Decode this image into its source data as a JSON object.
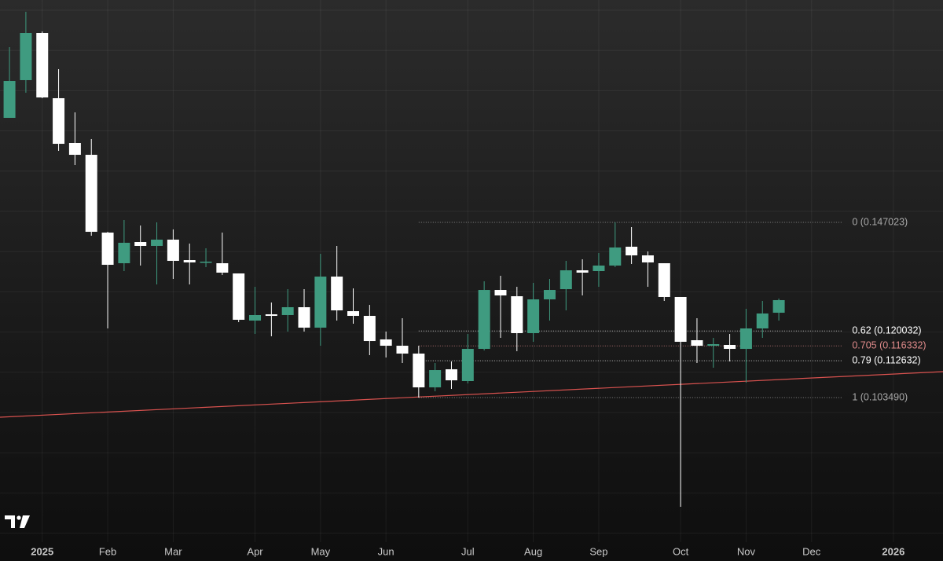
{
  "chart_data": {
    "type": "candlestick",
    "categories": [
      null,
      null,
      null,
      null,
      null,
      null,
      null,
      null,
      null,
      null,
      null,
      null,
      null,
      null,
      null,
      null,
      null,
      null,
      null,
      null,
      null,
      null,
      null,
      null,
      null,
      null,
      null,
      null,
      null,
      null,
      null,
      null,
      null,
      null,
      null,
      null,
      null,
      null,
      null,
      null,
      null,
      null,
      null,
      null,
      null,
      null,
      null,
      null
    ],
    "open": [
      0.17299,
      0.18236,
      0.19407,
      0.17787,
      0.16674,
      0.16381,
      0.14448,
      0.13687,
      0.14214,
      0.14117,
      0.14273,
      0.13765,
      0.13707,
      0.13687,
      0.13433,
      0.12262,
      0.12418,
      0.12399,
      0.12594,
      0.12086,
      0.13355,
      0.12496,
      0.12379,
      0.11794,
      0.11637,
      0.11442,
      0.10603,
      0.11052,
      0.10759,
      0.11559,
      0.13023,
      0.12867,
      0.1195,
      0.12789,
      0.13043,
      0.13511,
      0.13492,
      0.13629,
      0.14097,
      0.13882,
      0.13687,
      0.12848,
      0.11774,
      0.11637,
      0.11657,
      0.11559,
      0.12067,
      0.12457
    ],
    "high": [
      0.19056,
      0.19934,
      0.19446,
      0.18509,
      0.17435,
      0.16772,
      0.14468,
      0.14761,
      0.14624,
      0.14702,
      0.14527,
      0.14175,
      0.14058,
      0.14448,
      0.13433,
      0.13101,
      0.12711,
      0.13043,
      0.13043,
      0.13921,
      0.14117,
      0.13062,
      0.12652,
      0.11989,
      0.12321,
      0.11637,
      0.11208,
      0.11247,
      0.1193,
      0.13238,
      0.13375,
      0.13101,
      0.13199,
      0.13297,
      0.13746,
      0.13785,
      0.13941,
      0.14702,
      0.14585,
      0.1398,
      0.13687,
      0.12848,
      0.12321,
      0.11833,
      0.1193,
      0.12555,
      0.1275,
      0.12809
    ],
    "low": [
      0.17299,
      0.17923,
      0.17787,
      0.16479,
      0.16127,
      0.1437,
      0.12067,
      0.13492,
      0.13629,
      0.1316,
      0.13297,
      0.1316,
      0.1359,
      0.13394,
      0.12223,
      0.1193,
      0.11872,
      0.11989,
      0.11989,
      0.11637,
      0.12262,
      0.12184,
      0.11403,
      0.11345,
      0.11208,
      0.10349,
      0.10505,
      0.10564,
      0.107,
      0.1152,
      0.11833,
      0.11501,
      0.11735,
      0.12262,
      0.12516,
      0.12887,
      0.13101,
      0.1359,
      0.13668,
      0.13101,
      0.1275,
      0.07635,
      0.11208,
      0.11091,
      0.11247,
      0.1072,
      0.11833,
      0.12262
    ],
    "close": [
      0.18216,
      0.19407,
      0.17806,
      0.16654,
      0.16381,
      0.14468,
      0.13648,
      0.14195,
      0.14117,
      0.14273,
      0.13746,
      0.13707,
      0.13726,
      0.13453,
      0.12282,
      0.12399,
      0.12379,
      0.12594,
      0.12086,
      0.13355,
      0.12516,
      0.12379,
      0.11754,
      0.11637,
      0.11442,
      0.10603,
      0.11032,
      0.10778,
      0.11559,
      0.13023,
      0.12887,
      0.1195,
      0.12789,
      0.13023,
      0.13511,
      0.13453,
      0.13629,
      0.14078,
      0.13882,
      0.13707,
      0.12848,
      0.11735,
      0.11637,
      0.11676,
      0.11559,
      0.12067,
      0.12438,
      0.1277
    ],
    "up_color": "#3f9b80",
    "down_color": "#ffffff",
    "xlim": [
      -0.58,
      57.03
    ],
    "ylim": [
      0.06757,
      0.20227
    ],
    "xticks": [
      {
        "value": 2,
        "label": "2025"
      },
      {
        "value": 6,
        "label": "Feb"
      },
      {
        "value": 10,
        "label": "Mar"
      },
      {
        "value": 15,
        "label": "Apr"
      },
      {
        "value": 19,
        "label": "May"
      },
      {
        "value": 23,
        "label": "Jun"
      },
      {
        "value": 28,
        "label": "Jul"
      },
      {
        "value": 32,
        "label": "Aug"
      },
      {
        "value": 36,
        "label": "Sep"
      },
      {
        "value": 41,
        "label": "Oct"
      },
      {
        "value": 45,
        "label": "Nov"
      },
      {
        "value": 49,
        "label": "Dec"
      },
      {
        "value": 54,
        "label": "2026"
      }
    ],
    "grid": true,
    "fib_levels": {
      "x": [
        25,
        50.9
      ],
      "levels": [
        {
          "value": 0.147023,
          "label": "0 (0.147023)",
          "color": "#a9a9a9"
        },
        {
          "value": 0.120032,
          "label": "0.62 (0.120032)",
          "color": "#ffffff"
        },
        {
          "value": 0.116332,
          "label": "0.705 (0.116332)",
          "color": "#e08b8b"
        },
        {
          "value": 0.112632,
          "label": "0.79 (0.112632)",
          "color": "#ffffff"
        },
        {
          "value": 0.10349,
          "label": "1 (0.103490)",
          "color": "#a9a9a9"
        }
      ]
    },
    "trendline": {
      "x": [
        -0.58,
        57.03
      ],
      "values": [
        0.09861,
        0.10993
      ],
      "color": "#d9524f"
    }
  }
}
